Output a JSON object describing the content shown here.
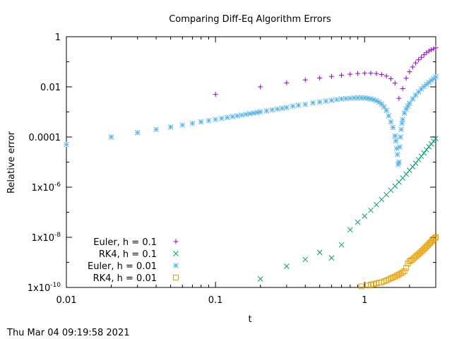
{
  "timestamp": "Thu Mar 04 09:19:58 2021",
  "chart_data": {
    "type": "scatter",
    "title": "Comparing Diff-Eq Algorithm Errors",
    "xlabel": "t",
    "ylabel": "Relative error",
    "xscale": "log",
    "yscale": "log",
    "xlim": [
      0.01,
      3
    ],
    "ylim": [
      1e-10,
      1
    ],
    "grid": false,
    "legend_position": "bottom-left",
    "x_ticks": [
      {
        "value": 0.01,
        "label": "0.01"
      },
      {
        "value": 0.1,
        "label": "0.1"
      },
      {
        "value": 1,
        "label": "1"
      }
    ],
    "y_ticks": [
      {
        "value": 1,
        "label": "1",
        "sup": ""
      },
      {
        "value": 0.01,
        "label": "0.01",
        "sup": ""
      },
      {
        "value": 0.0001,
        "label": "0.0001",
        "sup": ""
      },
      {
        "value": 1e-06,
        "label": "1x10",
        "sup": "-6"
      },
      {
        "value": 1e-08,
        "label": "1x10",
        "sup": "-8"
      },
      {
        "value": 1e-10,
        "label": "1x10",
        "sup": "-10"
      }
    ],
    "series": [
      {
        "name": "Euler, h = 0.1",
        "marker": "plus",
        "color": "#9400d3",
        "x": [
          0.1,
          0.2,
          0.3,
          0.4,
          0.5,
          0.6,
          0.7,
          0.8,
          0.9,
          1.0,
          1.1,
          1.2,
          1.3,
          1.4,
          1.5,
          1.6,
          1.7,
          1.8,
          1.9,
          2.0,
          2.1,
          2.2,
          2.3,
          2.4,
          2.5,
          2.6,
          2.7,
          2.8,
          2.9,
          3.0
        ],
        "y": [
          0.005,
          0.01,
          0.0145,
          0.019,
          0.0225,
          0.026,
          0.029,
          0.032,
          0.034,
          0.035,
          0.035,
          0.034,
          0.031,
          0.027,
          0.021,
          0.014,
          0.0035,
          0.0085,
          0.022,
          0.04,
          0.062,
          0.09,
          0.12,
          0.15,
          0.19,
          0.23,
          0.27,
          0.3,
          0.33,
          0.36
        ]
      },
      {
        "name": "RK4, h = 0.1",
        "marker": "cross",
        "color": "#009e73",
        "x": [
          0.2,
          0.3,
          0.4,
          0.5,
          0.6,
          0.7,
          0.8,
          0.9,
          1.0,
          1.1,
          1.2,
          1.3,
          1.4,
          1.5,
          1.6,
          1.7,
          1.8,
          1.9,
          2.0,
          2.1,
          2.2,
          2.3,
          2.4,
          2.5,
          2.6,
          2.7,
          2.8,
          2.9,
          3.0
        ],
        "y": [
          2.2e-10,
          7e-10,
          1.3e-09,
          2.5e-09,
          1.5e-09,
          5e-09,
          2e-08,
          4e-08,
          7e-08,
          1.2e-07,
          2e-07,
          3.2e-07,
          5e-07,
          7.5e-07,
          1.1e-06,
          1.6e-06,
          2.3e-06,
          3.3e-06,
          4.7e-06,
          6.5e-06,
          9e-06,
          1.25e-05,
          1.7e-05,
          2.3e-05,
          3.1e-05,
          4.1e-05,
          5.3e-05,
          6.8e-05,
          8.7e-05
        ]
      },
      {
        "name": "Euler, h = 0.01",
        "marker": "star",
        "color": "#56b4e9",
        "x": [
          0.01,
          0.02,
          0.03,
          0.04,
          0.05,
          0.06,
          0.07,
          0.08,
          0.09,
          0.1,
          0.11,
          0.12,
          0.13,
          0.14,
          0.15,
          0.16,
          0.17,
          0.18,
          0.19,
          0.2,
          0.22,
          0.24,
          0.26,
          0.28,
          0.3,
          0.33,
          0.36,
          0.4,
          0.45,
          0.5,
          0.55,
          0.6,
          0.65,
          0.7,
          0.75,
          0.8,
          0.85,
          0.9,
          0.95,
          1.0,
          1.05,
          1.1,
          1.15,
          1.2,
          1.25,
          1.3,
          1.35,
          1.4,
          1.45,
          1.5,
          1.55,
          1.6,
          1.62,
          1.64,
          1.66,
          1.68,
          1.7,
          1.72,
          1.74,
          1.76,
          1.78,
          1.8,
          1.85,
          1.9,
          1.95,
          2.0,
          2.1,
          2.2,
          2.3,
          2.4,
          2.5,
          2.6,
          2.7,
          2.8,
          2.9,
          3.0
        ],
        "y": [
          5e-05,
          0.0001,
          0.00015,
          0.0002,
          0.00025,
          0.0003,
          0.00035,
          0.0004,
          0.00045,
          0.0005,
          0.00055,
          0.0006,
          0.00065,
          0.0007,
          0.00075,
          0.0008,
          0.00085,
          0.0009,
          0.00095,
          0.001,
          0.0011,
          0.0012,
          0.0013,
          0.0014,
          0.0015,
          0.0017,
          0.00185,
          0.002,
          0.0023,
          0.0025,
          0.0027,
          0.0029,
          0.0031,
          0.0033,
          0.0034,
          0.0035,
          0.0036,
          0.00365,
          0.00365,
          0.0036,
          0.0035,
          0.0033,
          0.0031,
          0.0028,
          0.00245,
          0.00205,
          0.0016,
          0.00115,
          0.0007,
          0.0004,
          0.00024,
          0.00011,
          7e-05,
          3.5e-05,
          2e-05,
          8e-06,
          1e-05,
          4e-05,
          0.0001,
          0.0002,
          0.00035,
          0.0005,
          0.0009,
          0.0013,
          0.0017,
          0.0022,
          0.0033,
          0.0047,
          0.0063,
          0.0082,
          0.0103,
          0.0126,
          0.015,
          0.018,
          0.021,
          0.025
        ]
      },
      {
        "name": "RK4, h = 0.01",
        "marker": "square",
        "color": "#e69f00",
        "x": [
          0.95,
          1.05,
          1.1,
          1.15,
          1.2,
          1.25,
          1.3,
          1.35,
          1.4,
          1.45,
          1.5,
          1.55,
          1.6,
          1.65,
          1.7,
          1.75,
          1.8,
          1.85,
          1.9,
          1.95,
          2.0,
          2.05,
          2.1,
          2.15,
          2.2,
          2.25,
          2.3,
          2.35,
          2.4,
          2.45,
          2.5,
          2.55,
          2.6,
          2.65,
          2.7,
          2.75,
          2.8,
          2.85,
          2.9,
          2.95,
          3.0
        ],
        "y": [
          1.1e-10,
          1.2e-10,
          1.3e-10,
          1.35e-10,
          1.45e-10,
          1.55e-10,
          1.6e-10,
          1.75e-10,
          1.9e-10,
          2.1e-10,
          2.3e-10,
          2.5e-10,
          2.7e-10,
          3e-10,
          3.3e-10,
          3.6e-10,
          4e-10,
          4.5e-10,
          6e-10,
          9e-10,
          1.1e-09,
          1.2e-09,
          1.3e-09,
          1.5e-09,
          1.7e-09,
          1.9e-09,
          2.1e-09,
          2.4e-09,
          2.7e-09,
          3e-09,
          3.4e-09,
          3.8e-09,
          4.3e-09,
          4.8e-09,
          5.4e-09,
          6e-09,
          6.7e-09,
          7.5e-09,
          8.3e-09,
          9.2e-09,
          1e-08
        ]
      }
    ]
  }
}
